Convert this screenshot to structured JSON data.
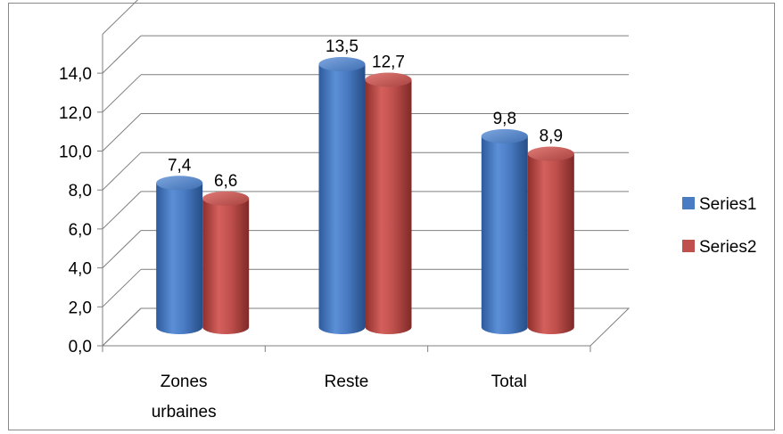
{
  "chart_data": {
    "type": "bar",
    "style": "3d-cylinder",
    "categories": [
      [
        "Zones",
        "urbaines"
      ],
      [
        "Reste"
      ],
      [
        "Total"
      ]
    ],
    "series": [
      {
        "name": "Series1",
        "values": [
          7.4,
          13.5,
          9.8
        ],
        "labels": [
          "7,4",
          "13,5",
          "9,8"
        ],
        "color": "#4a7cc4"
      },
      {
        "name": "Series2",
        "values": [
          6.6,
          12.7,
          8.9
        ],
        "labels": [
          "6,6",
          "12,7",
          "8,9"
        ],
        "color": "#c0504d"
      }
    ],
    "yticks": [
      "0,0",
      "2,0",
      "4,0",
      "6,0",
      "8,0",
      "10,0",
      "12,0",
      "14,0"
    ],
    "ylim": [
      0,
      16
    ],
    "grid": true,
    "legend_position": "right"
  }
}
